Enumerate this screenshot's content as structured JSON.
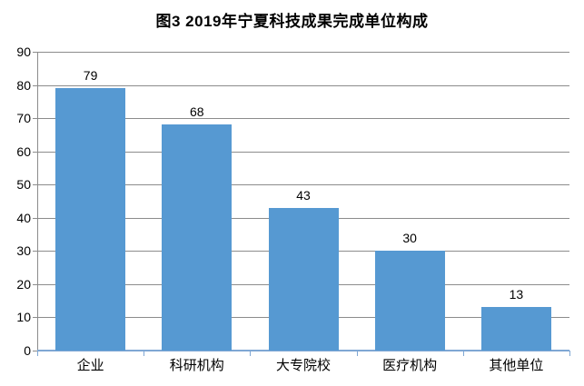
{
  "chart_data": {
    "type": "bar",
    "title": "图3 2019年宁夏科技成果完成单位构成",
    "categories": [
      "企业",
      "科研机构",
      "大专院校",
      "医疗机构",
      "其他单位"
    ],
    "values": [
      79,
      68,
      43,
      30,
      13
    ],
    "ylim": [
      0,
      90
    ],
    "yticks": [
      0,
      10,
      20,
      30,
      40,
      50,
      60,
      70,
      80,
      90
    ],
    "xlabel": "",
    "ylabel": "",
    "grid": true,
    "legend": "none",
    "data_labels": true,
    "colors": {
      "bar": "#5699d2",
      "gridline": "#8c8c8c",
      "axis_line": "#7fa7d4",
      "text": "#000000",
      "background": "#ffffff"
    }
  }
}
